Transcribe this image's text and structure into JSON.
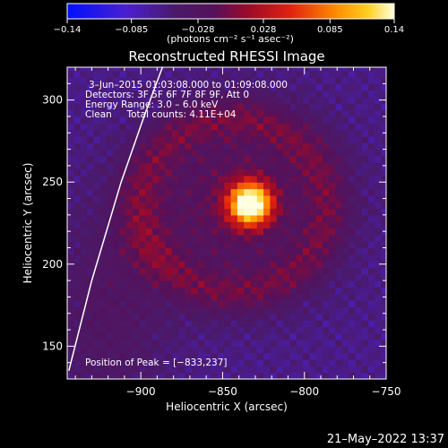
{
  "chart_data": {
    "type": "heatmap",
    "title": "Reconstructed RHESSI Image",
    "xlabel": "Heliocentric X (arcsec)",
    "ylabel": "Heliocentric Y (arcsec)",
    "xlim": [
      -945,
      -750
    ],
    "ylim": [
      130,
      320
    ],
    "x_ticks": [
      -900,
      -850,
      -800,
      -750
    ],
    "y_ticks": [
      150,
      200,
      250,
      300
    ],
    "x_tick_labels": [
      "−900",
      "−850",
      "−800",
      "−750"
    ],
    "y_tick_labels": [
      "150",
      "200",
      "250",
      "300"
    ],
    "colorbar": {
      "range": [
        -0.14,
        0.14
      ],
      "ticks": [
        -0.14,
        -0.085,
        -0.028,
        0.028,
        0.085,
        0.14
      ],
      "tick_labels": [
        "−0.14",
        "−0.085",
        "−0.028",
        "0.028",
        "0.085",
        "0.14"
      ],
      "unit_label": "(photons cm⁻² s⁻¹ asec⁻²)"
    },
    "annotations": [
      "3–Jun–2015 01:03:08.000 to 01:09:08.000",
      "Detectors: 3F 5F 6F 7F 8F 9F, Att 0",
      "Energy Range: 3.0 – 6.0 keV",
      "Clean     Total counts: 4.11E+04"
    ],
    "peak_label": "Position of Peak = [−833,237]",
    "peak": {
      "x": -833,
      "y": 237
    },
    "limb_points": [
      [
        -944,
        135
      ],
      [
        -930,
        190
      ],
      [
        -912,
        250
      ],
      [
        -898,
        290
      ],
      [
        -886,
        322
      ]
    ],
    "image_model": {
      "background": -0.06,
      "source": {
        "x": -833,
        "y": 237,
        "sigma": 9,
        "amp": 0.2
      },
      "halo": {
        "x": -842,
        "y": 238,
        "sx": 40,
        "sy": 38,
        "amp": 0.05
      },
      "ring": {
        "x": -843,
        "y": 236,
        "rx": 58,
        "ry": 54,
        "width": 10,
        "amp": 0.04
      },
      "west_arc": {
        "x": -920,
        "y": 170,
        "amp": 0.03
      }
    }
  },
  "footer": {
    "timestamp": "21–May–2022 13:37"
  },
  "colors": {
    "axes": "#ffffff",
    "background": "#000000",
    "limb": "#ffffff"
  }
}
